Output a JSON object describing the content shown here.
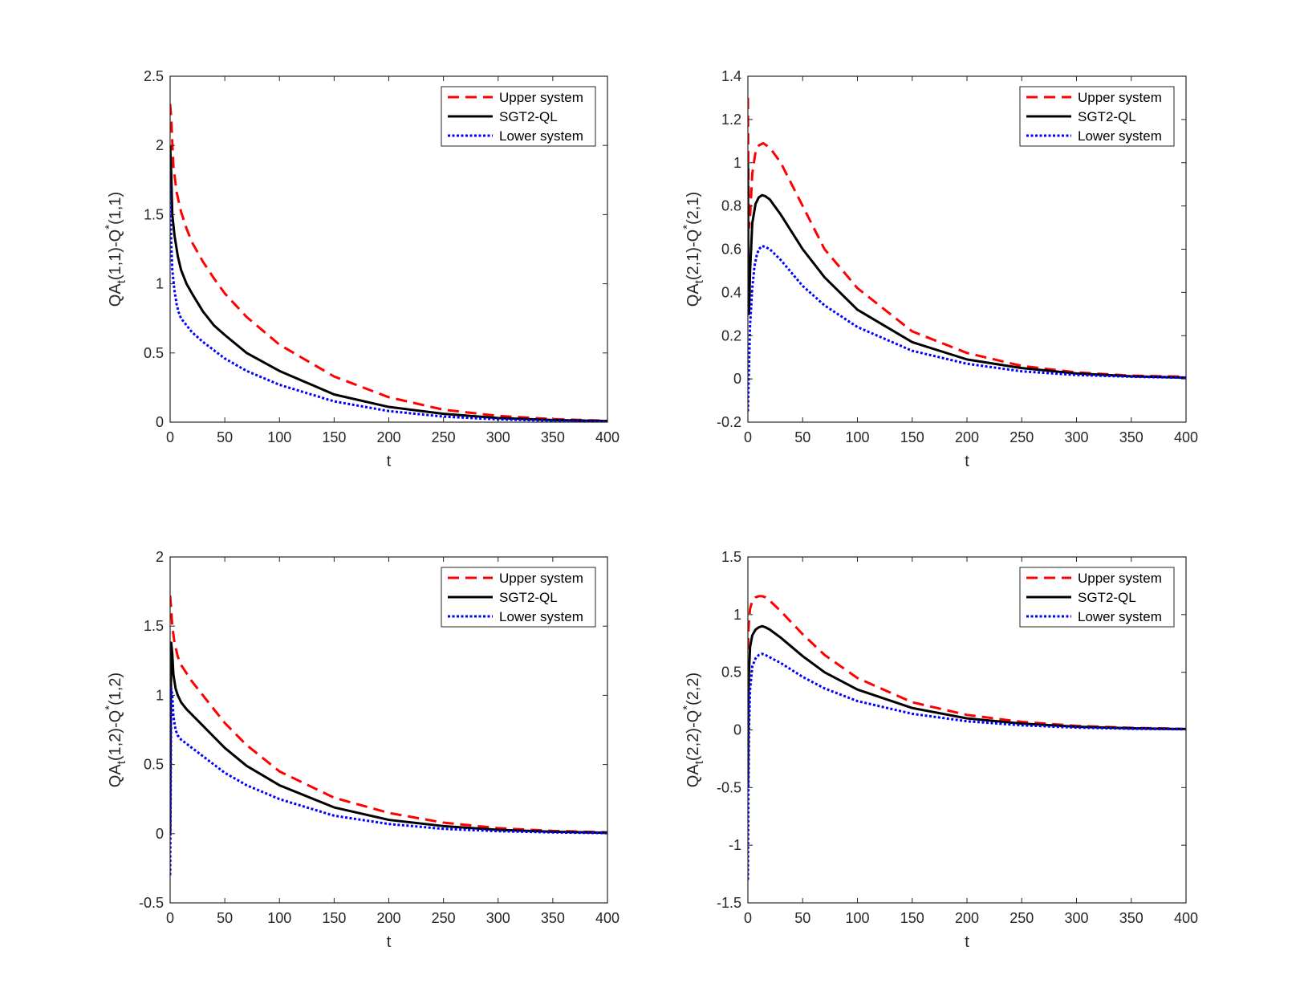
{
  "colors": {
    "upper": "#ff0000",
    "sgt2": "#000000",
    "lower": "#0000ff",
    "axes": "#262626"
  },
  "legend": {
    "upper": "Upper system",
    "sgt2": "SGT2-QL",
    "lower": "Lower system"
  },
  "chart_data": [
    {
      "type": "line",
      "xlabel": "t",
      "ylabel": {
        "base": "QA",
        "sub": "t",
        "mid": "(1,1)-Q",
        "sup": "*",
        "tail": "(1,1)"
      },
      "xlim": [
        0,
        400
      ],
      "ylim": [
        0,
        2.5
      ],
      "xticks": [
        "0",
        "50",
        "100",
        "150",
        "200",
        "250",
        "300",
        "350",
        "400"
      ],
      "yticks": [
        "0",
        "0.5",
        "1",
        "1.5",
        "2",
        "2.5"
      ],
      "series": [
        {
          "name": "Upper system",
          "x": [
            0,
            1,
            3,
            6,
            10,
            15,
            20,
            30,
            40,
            50,
            70,
            100,
            150,
            200,
            250,
            300,
            350,
            400
          ],
          "values": [
            2.3,
            2.2,
            1.85,
            1.66,
            1.52,
            1.4,
            1.3,
            1.16,
            1.04,
            0.93,
            0.76,
            0.56,
            0.33,
            0.18,
            0.09,
            0.045,
            0.022,
            0.01
          ]
        },
        {
          "name": "SGT2-QL",
          "x": [
            0,
            1,
            2,
            4,
            7,
            10,
            15,
            20,
            30,
            40,
            50,
            70,
            100,
            150,
            200,
            250,
            300,
            350,
            400
          ],
          "values": [
            2.0,
            1.8,
            1.5,
            1.35,
            1.2,
            1.1,
            1.0,
            0.93,
            0.8,
            0.7,
            0.63,
            0.5,
            0.37,
            0.2,
            0.11,
            0.06,
            0.03,
            0.015,
            0.008
          ]
        },
        {
          "name": "Lower system",
          "x": [
            0,
            1,
            2,
            4,
            6,
            8,
            10,
            15,
            20,
            30,
            40,
            50,
            70,
            100,
            150,
            200,
            250,
            300,
            350,
            400
          ],
          "values": [
            1.72,
            1.3,
            1.1,
            0.95,
            0.85,
            0.79,
            0.75,
            0.7,
            0.65,
            0.58,
            0.52,
            0.46,
            0.37,
            0.27,
            0.15,
            0.08,
            0.04,
            0.02,
            0.01,
            0.005
          ]
        }
      ]
    },
    {
      "type": "line",
      "xlabel": "t",
      "ylabel": {
        "base": "QA",
        "sub": "t",
        "mid": "(2,1)-Q",
        "sup": "*",
        "tail": "(2,1)"
      },
      "xlim": [
        0,
        400
      ],
      "ylim": [
        -0.2,
        1.4
      ],
      "xticks": [
        "0",
        "50",
        "100",
        "150",
        "200",
        "250",
        "300",
        "350",
        "400"
      ],
      "yticks": [
        "-0.2",
        "0",
        "0.2",
        "0.4",
        "0.6",
        "0.8",
        "1",
        "1.2",
        "1.4"
      ],
      "series": [
        {
          "name": "Upper system",
          "x": [
            0,
            0.5,
            1,
            2,
            4,
            7,
            10,
            14,
            20,
            30,
            40,
            50,
            70,
            100,
            150,
            200,
            250,
            300,
            350,
            400
          ],
          "values": [
            1.3,
            0.9,
            0.7,
            0.75,
            0.95,
            1.05,
            1.08,
            1.09,
            1.07,
            1.0,
            0.9,
            0.8,
            0.6,
            0.42,
            0.22,
            0.12,
            0.06,
            0.03,
            0.015,
            0.01
          ]
        },
        {
          "name": "SGT2-QL",
          "x": [
            0,
            0.5,
            1,
            2,
            4,
            7,
            10,
            13,
            16,
            20,
            30,
            40,
            50,
            70,
            100,
            150,
            200,
            250,
            300,
            350,
            400
          ],
          "values": [
            1.0,
            0.4,
            0.3,
            0.5,
            0.72,
            0.81,
            0.84,
            0.85,
            0.845,
            0.83,
            0.76,
            0.68,
            0.6,
            0.47,
            0.32,
            0.17,
            0.09,
            0.05,
            0.025,
            0.012,
            0.006
          ]
        },
        {
          "name": "Lower system",
          "x": [
            0,
            1,
            2,
            4,
            6,
            8,
            10,
            13,
            16,
            20,
            30,
            40,
            50,
            70,
            100,
            150,
            200,
            250,
            300,
            350,
            400
          ],
          "values": [
            -0.15,
            0.05,
            0.25,
            0.42,
            0.52,
            0.57,
            0.6,
            0.615,
            0.61,
            0.6,
            0.55,
            0.49,
            0.43,
            0.34,
            0.24,
            0.13,
            0.07,
            0.035,
            0.018,
            0.01,
            0.005
          ]
        }
      ]
    },
    {
      "type": "line",
      "xlabel": "t",
      "ylabel": {
        "base": "QA",
        "sub": "t",
        "mid": "(1,2)-Q",
        "sup": "*",
        "tail": "(1,2)"
      },
      "xlim": [
        0,
        400
      ],
      "ylim": [
        -0.5,
        2
      ],
      "xticks": [
        "0",
        "50",
        "100",
        "150",
        "200",
        "250",
        "300",
        "350",
        "400"
      ],
      "yticks": [
        "-0.5",
        "0",
        "0.5",
        "1",
        "1.5",
        "2"
      ],
      "series": [
        {
          "name": "Upper system",
          "x": [
            0,
            1,
            2,
            4,
            7,
            10,
            15,
            20,
            30,
            40,
            50,
            70,
            100,
            150,
            200,
            250,
            300,
            350,
            400
          ],
          "values": [
            1.72,
            1.62,
            1.5,
            1.38,
            1.28,
            1.22,
            1.16,
            1.1,
            1.0,
            0.9,
            0.8,
            0.64,
            0.45,
            0.26,
            0.15,
            0.08,
            0.04,
            0.02,
            0.01
          ]
        },
        {
          "name": "SGT2-QL",
          "x": [
            0,
            0.5,
            1,
            2,
            3,
            5,
            7,
            10,
            15,
            20,
            30,
            40,
            50,
            70,
            100,
            150,
            200,
            250,
            300,
            350,
            400
          ],
          "values": [
            0.0,
            0.8,
            1.38,
            1.3,
            1.15,
            1.05,
            1.0,
            0.95,
            0.9,
            0.86,
            0.78,
            0.7,
            0.62,
            0.49,
            0.35,
            0.19,
            0.1,
            0.055,
            0.028,
            0.014,
            0.007
          ]
        },
        {
          "name": "Lower system",
          "x": [
            0,
            0.5,
            1,
            2,
            3,
            5,
            7,
            10,
            15,
            20,
            30,
            40,
            50,
            70,
            100,
            150,
            200,
            250,
            300,
            350,
            400
          ],
          "values": [
            -0.3,
            0.3,
            1.05,
            1.0,
            0.85,
            0.75,
            0.71,
            0.68,
            0.65,
            0.62,
            0.56,
            0.5,
            0.44,
            0.35,
            0.25,
            0.13,
            0.07,
            0.035,
            0.018,
            0.009,
            0.004
          ]
        }
      ]
    },
    {
      "type": "line",
      "xlabel": "t",
      "ylabel": {
        "base": "QA",
        "sub": "t",
        "mid": "(2,2)-Q",
        "sup": "*",
        "tail": "(2,2)"
      },
      "xlim": [
        0,
        400
      ],
      "ylim": [
        -1.5,
        1.5
      ],
      "xticks": [
        "0",
        "50",
        "100",
        "150",
        "200",
        "250",
        "300",
        "350",
        "400"
      ],
      "yticks": [
        "-1.5",
        "-1",
        "-0.5",
        "0",
        "0.5",
        "1",
        "1.5"
      ],
      "series": [
        {
          "name": "Upper system",
          "x": [
            0,
            0.5,
            1,
            2,
            4,
            7,
            10,
            13,
            16,
            20,
            30,
            40,
            50,
            70,
            100,
            150,
            200,
            250,
            300,
            350,
            400
          ],
          "values": [
            0.7,
            0.85,
            0.95,
            1.05,
            1.12,
            1.15,
            1.16,
            1.16,
            1.15,
            1.12,
            1.03,
            0.93,
            0.83,
            0.65,
            0.45,
            0.24,
            0.13,
            0.07,
            0.035,
            0.018,
            0.009
          ]
        },
        {
          "name": "SGT2-QL",
          "x": [
            0,
            0.5,
            1,
            2,
            4,
            7,
            10,
            13,
            16,
            20,
            30,
            40,
            50,
            70,
            100,
            150,
            200,
            250,
            300,
            350,
            400
          ],
          "values": [
            -0.5,
            0.2,
            0.5,
            0.72,
            0.82,
            0.87,
            0.89,
            0.9,
            0.89,
            0.87,
            0.8,
            0.72,
            0.64,
            0.5,
            0.35,
            0.19,
            0.1,
            0.055,
            0.028,
            0.014,
            0.007
          ]
        },
        {
          "name": "Lower system",
          "x": [
            0,
            0.5,
            1,
            2,
            4,
            7,
            10,
            13,
            16,
            20,
            30,
            40,
            50,
            70,
            100,
            150,
            200,
            250,
            300,
            350,
            400
          ],
          "values": [
            -1.3,
            -0.5,
            0.0,
            0.35,
            0.55,
            0.62,
            0.65,
            0.66,
            0.65,
            0.63,
            0.58,
            0.52,
            0.46,
            0.36,
            0.25,
            0.14,
            0.075,
            0.04,
            0.02,
            0.01,
            0.005
          ]
        }
      ]
    }
  ]
}
